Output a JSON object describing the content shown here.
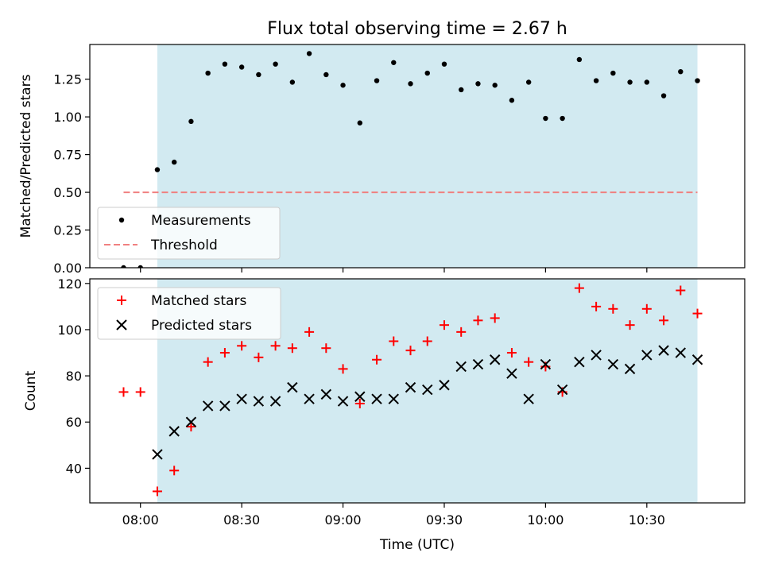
{
  "chart_data": [
    {
      "type": "scatter",
      "title": "Flux total observing time = 2.67 h",
      "xlabel": "",
      "ylabel": "Matched/Predicted stars",
      "ylim": [
        0,
        1.48
      ],
      "yticks": [
        0.0,
        0.25,
        0.5,
        0.75,
        1.0,
        1.25
      ],
      "ytick_labels": [
        "0.00",
        "0.25",
        "0.50",
        "0.75",
        "1.00",
        "1.25"
      ],
      "xlim": [
        "07:45",
        "10:59"
      ],
      "shaded_span": [
        "08:05",
        "10:45"
      ],
      "shaded_color": "#add8e6",
      "legend_position": "lower-left",
      "grid": false,
      "series": [
        {
          "name": "Measurements",
          "marker": "dot",
          "color": "#000000",
          "x": [
            "07:55",
            "08:00",
            "08:05",
            "08:10",
            "08:15",
            "08:20",
            "08:25",
            "08:30",
            "08:35",
            "08:40",
            "08:45",
            "08:50",
            "08:55",
            "09:00",
            "09:05",
            "09:10",
            "09:15",
            "09:20",
            "09:25",
            "09:30",
            "09:35",
            "09:40",
            "09:45",
            "09:50",
            "09:55",
            "10:00",
            "10:05",
            "10:10",
            "10:15",
            "10:20",
            "10:25",
            "10:30",
            "10:35",
            "10:40",
            "10:45"
          ],
          "y": [
            0.0,
            0.0,
            0.65,
            0.7,
            0.97,
            1.29,
            1.35,
            1.33,
            1.28,
            1.35,
            1.23,
            1.42,
            1.28,
            1.21,
            0.96,
            1.24,
            1.36,
            1.22,
            1.29,
            1.35,
            1.18,
            1.22,
            1.21,
            1.11,
            1.23,
            0.99,
            0.99,
            1.38,
            1.24,
            1.29,
            1.23,
            1.23,
            1.14,
            1.3,
            1.24
          ]
        },
        {
          "name": "Threshold",
          "marker": "dashed-line",
          "color": "#f08080",
          "x": [
            "07:55",
            "10:45"
          ],
          "y": [
            0.5,
            0.5
          ]
        }
      ]
    },
    {
      "type": "scatter",
      "title": "",
      "xlabel": "Time (UTC)",
      "ylabel": "Count",
      "ylim": [
        25,
        122
      ],
      "yticks": [
        40,
        60,
        80,
        100,
        120
      ],
      "ytick_labels": [
        "40",
        "60",
        "80",
        "100",
        "120"
      ],
      "xlim": [
        "07:45",
        "10:59"
      ],
      "xticks": [
        "08:00",
        "08:30",
        "09:00",
        "09:30",
        "10:00",
        "10:30"
      ],
      "xtick_labels": [
        "08:00",
        "08:30",
        "09:00",
        "09:30",
        "10:00",
        "10:30"
      ],
      "shaded_span": [
        "08:05",
        "10:45"
      ],
      "shaded_color": "#add8e6",
      "legend_position": "top-left",
      "grid": false,
      "series": [
        {
          "name": "Matched stars",
          "marker": "plus",
          "color": "#ff0000",
          "x": [
            "07:55",
            "08:00",
            "08:05",
            "08:10",
            "08:15",
            "08:20",
            "08:25",
            "08:30",
            "08:35",
            "08:40",
            "08:45",
            "08:50",
            "08:55",
            "09:00",
            "09:05",
            "09:10",
            "09:15",
            "09:20",
            "09:25",
            "09:30",
            "09:35",
            "09:40",
            "09:45",
            "09:50",
            "09:55",
            "10:00",
            "10:05",
            "10:10",
            "10:15",
            "10:20",
            "10:25",
            "10:30",
            "10:35",
            "10:40",
            "10:45"
          ],
          "y": [
            73,
            73,
            30,
            39,
            58,
            86,
            90,
            93,
            88,
            93,
            92,
            99,
            92,
            83,
            68,
            87,
            95,
            91,
            95,
            102,
            99,
            104,
            105,
            90,
            86,
            84,
            73,
            118,
            110,
            109,
            102,
            109,
            104,
            117,
            107
          ]
        },
        {
          "name": "Predicted stars",
          "marker": "x",
          "color": "#000000",
          "x": [
            "08:05",
            "08:10",
            "08:15",
            "08:20",
            "08:25",
            "08:30",
            "08:35",
            "08:40",
            "08:45",
            "08:50",
            "08:55",
            "09:00",
            "09:05",
            "09:10",
            "09:15",
            "09:20",
            "09:25",
            "09:30",
            "09:35",
            "09:40",
            "09:45",
            "09:50",
            "09:55",
            "10:00",
            "10:05",
            "10:10",
            "10:15",
            "10:20",
            "10:25",
            "10:30",
            "10:35",
            "10:40",
            "10:45"
          ],
          "y": [
            46,
            56,
            60,
            67,
            67,
            70,
            69,
            69,
            75,
            70,
            72,
            69,
            71,
            70,
            70,
            75,
            74,
            76,
            84,
            85,
            87,
            81,
            70,
            85,
            74,
            86,
            89,
            85,
            83,
            89,
            91,
            90,
            87
          ]
        }
      ]
    }
  ]
}
